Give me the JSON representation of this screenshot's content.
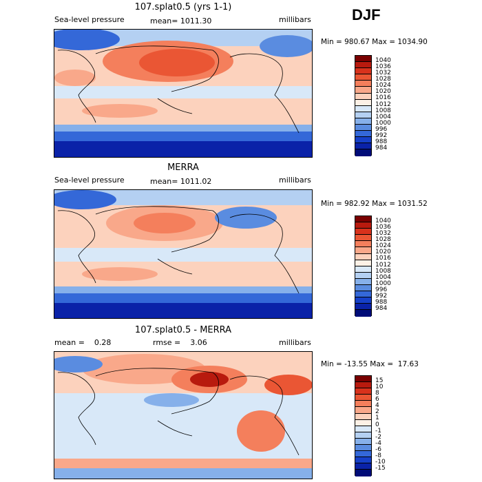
{
  "season": "DJF",
  "panels": [
    {
      "title": "107.splat0.5 (yrs 1-1)",
      "left_text": "Sea-level pressure",
      "center_text": "mean= 1011.30",
      "right_text": "millibars",
      "minmax": "Min = 980.67 Max = 1034.90"
    },
    {
      "title": "MERRA",
      "left_text": "Sea-level pressure",
      "center_text": "mean= 1011.02",
      "right_text": "millibars",
      "minmax": "Min = 982.92 Max = 1031.52"
    },
    {
      "title": "107.splat0.5 - MERRA",
      "left_text": "mean =    0.28",
      "center_text": "rmse =    3.06",
      "right_text": "millibars",
      "minmax": "Min = -13.55 Max =  17.63"
    }
  ],
  "colorbars": {
    "pressure": {
      "labels": [
        "1040",
        "1036",
        "1032",
        "1028",
        "1024",
        "1020",
        "1016",
        "1012",
        "1008",
        "1004",
        "1000",
        "996",
        "992",
        "988",
        "984"
      ],
      "colors": [
        "#7a0000",
        "#b81a0e",
        "#d8321c",
        "#ea5634",
        "#f47f5c",
        "#f9a88a",
        "#fcd2bd",
        "#fdf1e6",
        "#d8e8f8",
        "#b4d0f2",
        "#86b0ea",
        "#5a8ce0",
        "#3468d8",
        "#1640c8",
        "#0a22a8",
        "#000c78"
      ]
    },
    "difference": {
      "labels": [
        "15",
        "10",
        "8",
        "6",
        "4",
        "2",
        "1",
        "0",
        "-1",
        "-2",
        "-4",
        "-6",
        "-8",
        "-10",
        "-15"
      ],
      "colors": [
        "#7a0000",
        "#b81a0e",
        "#d8321c",
        "#ea5634",
        "#f47f5c",
        "#f9a88a",
        "#fcd2bd",
        "#fdf1e6",
        "#d8e8f8",
        "#b4d0f2",
        "#86b0ea",
        "#5a8ce0",
        "#3468d8",
        "#1640c8",
        "#0a22a8",
        "#000c78"
      ]
    }
  }
}
